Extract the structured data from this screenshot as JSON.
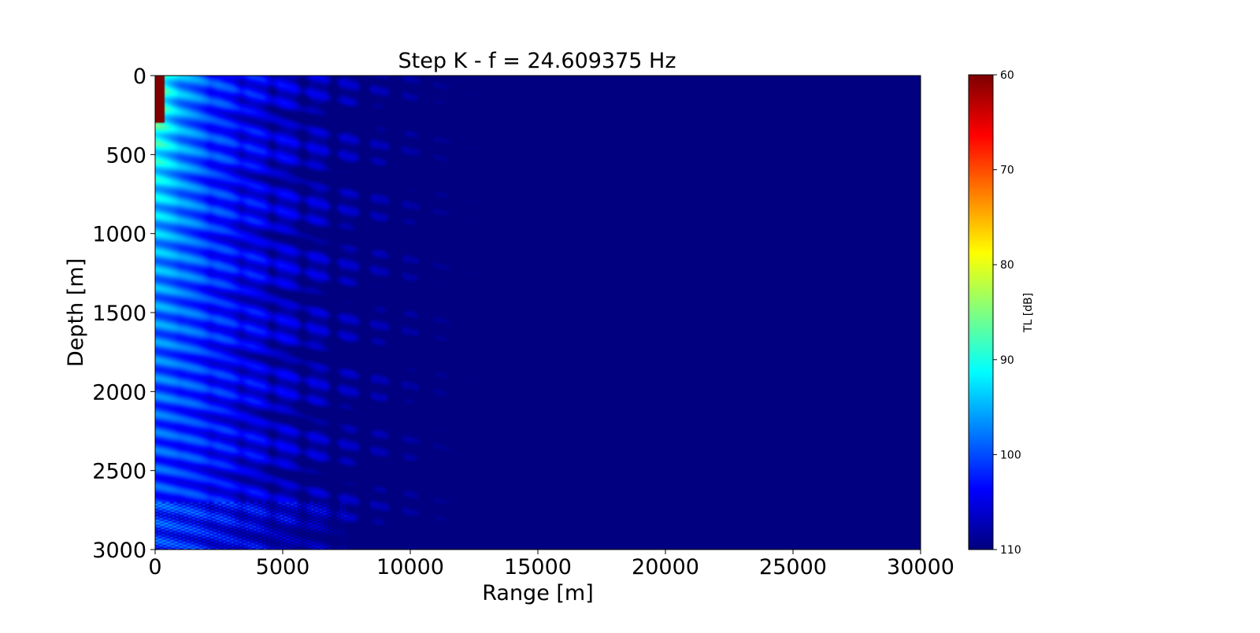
{
  "chart_data": {
    "type": "heatmap",
    "title": "Step K - f = 24.609375 Hz",
    "xlabel": "Range [m]",
    "ylabel": "Depth [m]",
    "xlim": [
      0,
      30000
    ],
    "ylim": [
      3000,
      0
    ],
    "x_ticks": [
      0,
      5000,
      10000,
      15000,
      20000,
      25000,
      30000
    ],
    "y_ticks": [
      0,
      500,
      1000,
      1500,
      2000,
      2500,
      3000
    ],
    "colorbar": {
      "label": "TL [dB]",
      "range": [
        60,
        110
      ],
      "ticks": [
        60,
        70,
        80,
        90,
        100,
        110
      ],
      "colormap": "jet",
      "reversed": true
    },
    "grid": false
  }
}
